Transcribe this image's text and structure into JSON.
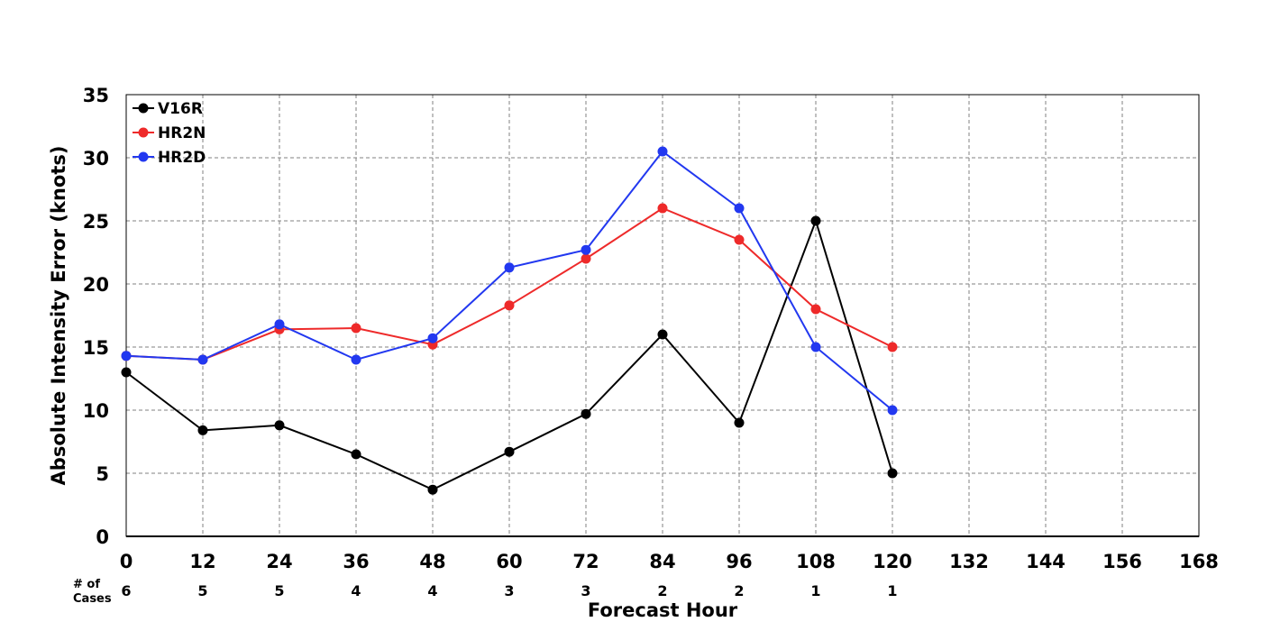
{
  "chart_data": {
    "type": "line",
    "title": "",
    "xlabel": "Forecast Hour",
    "ylabel": "Absolute Intensity Error (knots)",
    "xlim": [
      0,
      168
    ],
    "ylim": [
      0,
      35
    ],
    "x_ticks": [
      "0",
      "12",
      "24",
      "36",
      "48",
      "60",
      "72",
      "84",
      "96",
      "108",
      "120",
      "132",
      "144",
      "156",
      "168"
    ],
    "y_ticks": [
      "0",
      "5",
      "10",
      "15",
      "20",
      "25",
      "30",
      "35"
    ],
    "grid": true,
    "legend_position": "top-left",
    "x": [
      0,
      12,
      24,
      36,
      48,
      60,
      72,
      84,
      96,
      108,
      120
    ],
    "series": [
      {
        "name": "V16R",
        "color": "#000000",
        "values": [
          13.0,
          8.4,
          8.8,
          6.5,
          3.7,
          6.7,
          9.7,
          16.0,
          9.0,
          25.0,
          5.0
        ]
      },
      {
        "name": "HR2N",
        "color": "#ee2a2a",
        "values": [
          14.3,
          14.0,
          16.4,
          16.5,
          15.2,
          18.3,
          22.0,
          26.0,
          23.5,
          18.0,
          15.0
        ]
      },
      {
        "name": "HR2D",
        "color": "#2238f0",
        "values": [
          14.3,
          14.0,
          16.8,
          14.0,
          15.7,
          21.3,
          22.7,
          30.5,
          26.0,
          15.0,
          10.0
        ]
      }
    ],
    "cases_label_line1": "# of",
    "cases_label_line2": "Cases",
    "cases": [
      "6",
      "5",
      "5",
      "4",
      "4",
      "3",
      "3",
      "2",
      "2",
      "1",
      "1"
    ]
  }
}
